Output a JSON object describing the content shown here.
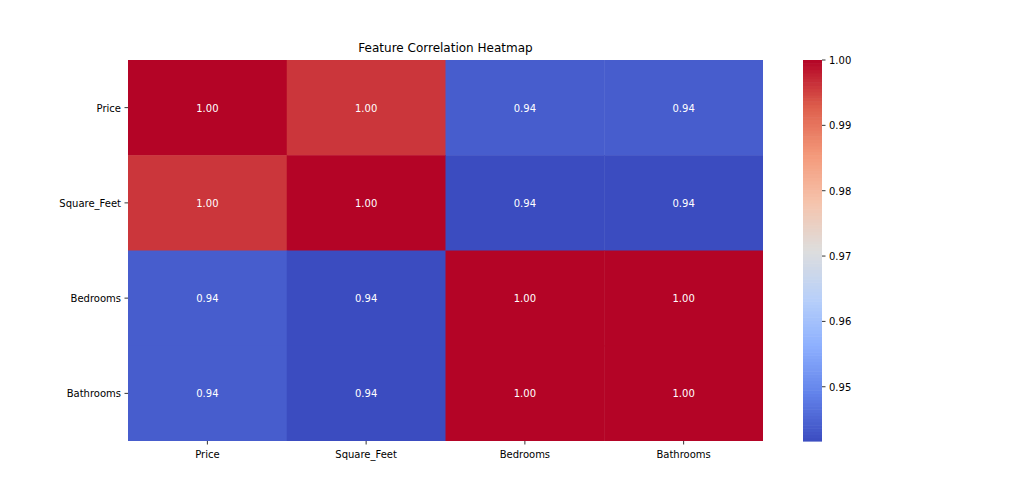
{
  "chart_data": {
    "type": "heatmap",
    "title": "Feature Correlation Heatmap",
    "x_categories": [
      "Price",
      "Square_Feet",
      "Bedrooms",
      "Bathrooms"
    ],
    "y_categories": [
      "Price",
      "Square_Feet",
      "Bedrooms",
      "Bathrooms"
    ],
    "cells": [
      [
        1.0,
        0.996,
        0.944,
        0.944
      ],
      [
        0.996,
        1.0,
        0.9417,
        0.9417
      ],
      [
        0.944,
        0.9417,
        1.0,
        1.0
      ],
      [
        0.944,
        0.9417,
        1.0,
        1.0
      ]
    ],
    "value_labels": [
      [
        "1.00",
        "1.00",
        "0.94",
        "0.94"
      ],
      [
        "1.00",
        "1.00",
        "0.94",
        "0.94"
      ],
      [
        "0.94",
        "0.94",
        "1.00",
        "1.00"
      ],
      [
        "0.94",
        "0.94",
        "1.00",
        "1.00"
      ]
    ],
    "data_labels": true,
    "color_range": [
      0.9417,
      1.0
    ],
    "color_ticks": [
      0.95,
      0.96,
      0.97,
      0.98,
      0.99,
      {
        "value": 1.0,
        "label": "1.00"
      }
    ]
  }
}
